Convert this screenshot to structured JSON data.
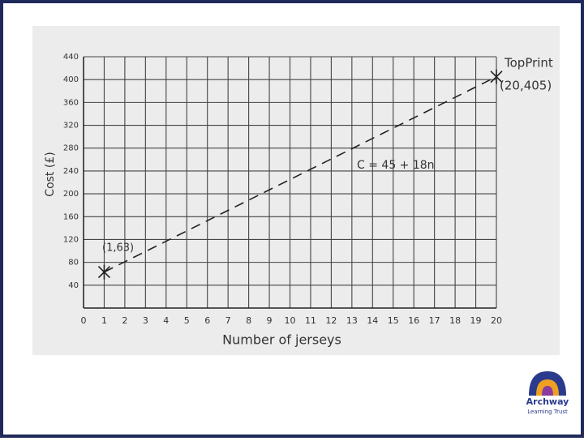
{
  "chart_data": {
    "type": "line",
    "xlabel": "Number of jerseys",
    "ylabel": "Cost (£)",
    "x": [
      1,
      20
    ],
    "values": [
      63,
      405
    ],
    "color": "#222222",
    "xlim": [
      0,
      20
    ],
    "ylim": [
      0,
      440
    ],
    "xticks": [
      0,
      1,
      2,
      3,
      4,
      5,
      6,
      7,
      8,
      9,
      10,
      11,
      12,
      13,
      14,
      15,
      16,
      17,
      18,
      19,
      20
    ],
    "yticks": [
      40,
      80,
      120,
      160,
      200,
      240,
      280,
      320,
      360,
      400,
      440
    ],
    "grid": true,
    "annotations": [
      "TopPrint",
      "(20,405)",
      "(1,63)",
      "C = 45 + 18n"
    ]
  },
  "logo": {
    "name": "Archway",
    "subtitle": "Learning Trust"
  }
}
